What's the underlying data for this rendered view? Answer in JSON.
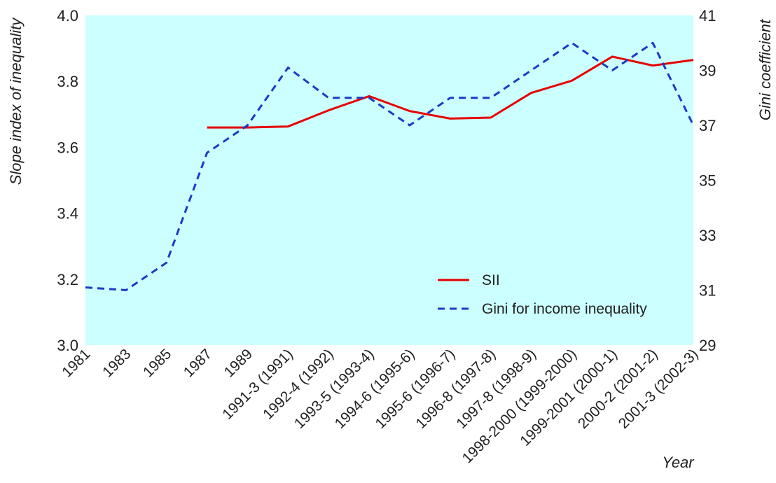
{
  "chart_data": {
    "type": "line",
    "xlabel": "Year",
    "ylabel_left": "Slope index of inequality",
    "ylabel_right": "Gini coefficient",
    "categories": [
      "1981",
      "1983",
      "1985",
      "1987",
      "1989",
      "1991-3 (1991)",
      "1992-4 (1992)",
      "1993-5 (1993-4)",
      "1994-6 (1995-6)",
      "1995-6 (1996-7)",
      "1996-8 (1997-8)",
      "1997-8 (1998-9)",
      "1998-2000 (1999-2000)",
      "1999-2001 (2000-1)",
      "2000-2 (2001-2)",
      "2001-3 (2002-3)"
    ],
    "ylim_left": [
      3.0,
      4.0
    ],
    "yticks_left": [
      "3.0",
      "3.2",
      "3.4",
      "3.6",
      "3.8",
      "4.0"
    ],
    "ylim_right": [
      29,
      41
    ],
    "yticks_right": [
      "29",
      "31",
      "33",
      "35",
      "37",
      "39",
      "41"
    ],
    "background": "#ccffff",
    "legend_position": "bottom-right",
    "series": [
      {
        "name": "SII",
        "axis": "left",
        "color": "#e60000",
        "dash": "solid",
        "values": [
          null,
          null,
          null,
          3.66,
          3.66,
          3.663,
          3.712,
          3.755,
          3.71,
          3.687,
          3.69,
          3.765,
          3.802,
          3.875,
          3.848,
          3.865
        ]
      },
      {
        "name": "Gini for income inequality",
        "axis": "right",
        "color": "#1a3cc8",
        "dash": "dashed",
        "values": [
          31.1,
          31.0,
          32.0,
          36.0,
          37.0,
          39.1,
          38.0,
          38.0,
          37.0,
          38.0,
          38.0,
          39.0,
          40.0,
          39.0,
          40.0,
          37.0
        ]
      }
    ]
  }
}
